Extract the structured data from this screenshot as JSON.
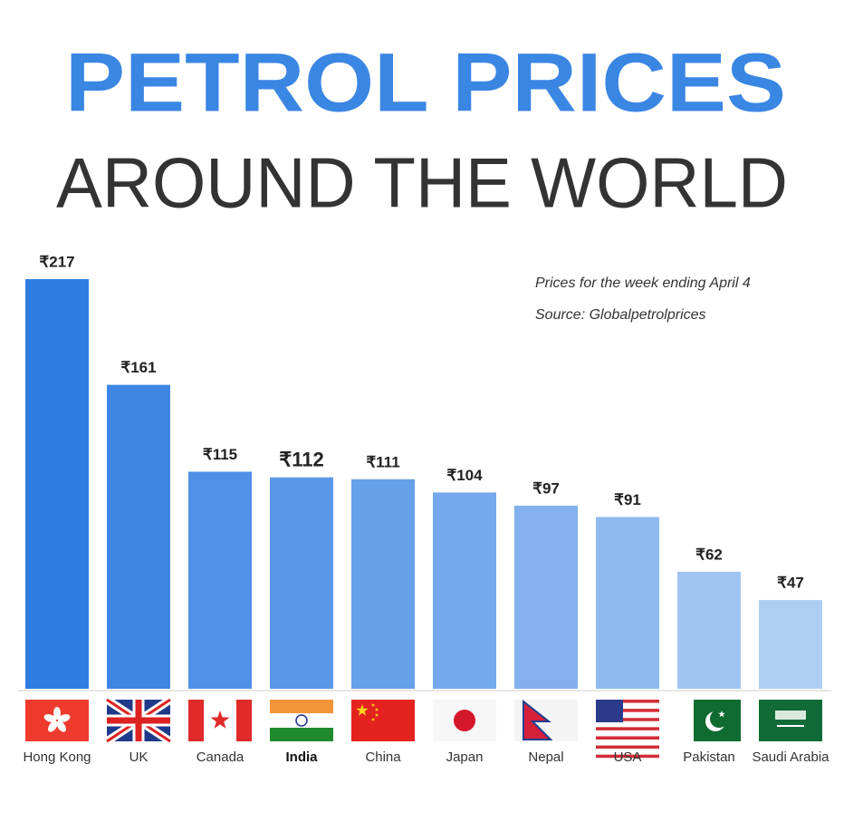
{
  "chart_data": {
    "type": "bar",
    "title": "PETROL PRICES",
    "subtitle": "AROUND THE WORLD",
    "annotations": [
      "Prices for the week ending April 4",
      "Source: Globalpetrolprices"
    ],
    "categories": [
      "Hong Kong",
      "UK",
      "Canada",
      "India",
      "China",
      "Japan",
      "Nepal",
      "USA",
      "Pakistan",
      "Saudi Arabia"
    ],
    "values": [
      217,
      161,
      115,
      112,
      111,
      104,
      97,
      91,
      62,
      47
    ],
    "value_labels": [
      "₹217",
      "₹161",
      "₹115",
      "₹112",
      "₹111",
      "₹104",
      "₹97",
      "₹91",
      "₹62",
      "₹47"
    ],
    "colors": [
      "#2f7de1",
      "#3d86e3",
      "#4f91e6",
      "#5a98e7",
      "#66a0e9",
      "#74a9eb",
      "#82b1ed",
      "#8fbaef",
      "#a0c4f1",
      "#aecdf3"
    ]
  }
}
